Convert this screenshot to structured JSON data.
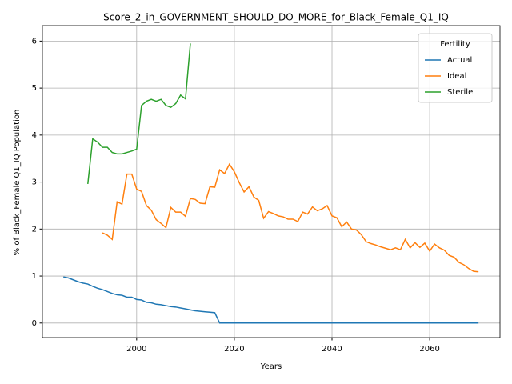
{
  "chart_data": {
    "type": "line",
    "title": "Score_2_in_GOVERNMENT_SHOULD_DO_MORE_for_Black_Female_Q1_IQ",
    "x_label": "Years",
    "y_label": "% of Black_Female Q1_IQ Population",
    "legend_title": "Fertility",
    "legend_loc": "upper right",
    "grid": true,
    "x": [
      1985,
      1986,
      1987,
      1988,
      1989,
      1990,
      1991,
      1992,
      1993,
      1994,
      1995,
      1996,
      1997,
      1998,
      1999,
      2000,
      2001,
      2002,
      2003,
      2004,
      2005,
      2006,
      2007,
      2008,
      2009,
      2010,
      2011,
      2012,
      2013,
      2014,
      2015,
      2016,
      2017,
      2018,
      2019,
      2020,
      2021,
      2022,
      2023,
      2024,
      2025,
      2026,
      2027,
      2028,
      2029,
      2030,
      2031,
      2032,
      2033,
      2034,
      2035,
      2036,
      2037,
      2038,
      2039,
      2040,
      2041,
      2042,
      2043,
      2044,
      2045,
      2046,
      2047,
      2048,
      2049,
      2050,
      2051,
      2052,
      2053,
      2054,
      2055,
      2056,
      2057,
      2058,
      2059,
      2060,
      2061,
      2062,
      2063,
      2064,
      2065,
      2066,
      2067,
      2068,
      2069,
      2070
    ],
    "xlim": [
      1980.7,
      2074.4
    ],
    "xticks": [
      2000,
      2020,
      2040,
      2060
    ],
    "ylim": [
      -0.31,
      6.33
    ],
    "yticks": [
      0,
      1,
      2,
      3,
      4,
      5,
      6
    ],
    "series": [
      {
        "name": "Actual",
        "color": "#1f77b4",
        "values": [
          0.98,
          0.96,
          0.92,
          0.88,
          0.85,
          0.83,
          0.78,
          0.74,
          0.71,
          0.67,
          0.63,
          0.6,
          0.59,
          0.55,
          0.55,
          0.5,
          0.49,
          0.44,
          0.43,
          0.4,
          0.39,
          0.37,
          0.35,
          0.34,
          0.32,
          0.3,
          0.28,
          0.26,
          0.25,
          0.24,
          0.23,
          0.22,
          0,
          0,
          0,
          0,
          0,
          0,
          0,
          0,
          0,
          0,
          0,
          0,
          0,
          0,
          0,
          0,
          0,
          0,
          0,
          0,
          0,
          0,
          0,
          0,
          0,
          0,
          0,
          0,
          0,
          0,
          0,
          0,
          0,
          0,
          0,
          0,
          0,
          0,
          0,
          0,
          0,
          0,
          0,
          0,
          0,
          0,
          0,
          0,
          0,
          0,
          0,
          0,
          0,
          0
        ]
      },
      {
        "name": "Ideal",
        "color": "#ff7f0e",
        "values": [
          null,
          null,
          null,
          null,
          null,
          null,
          null,
          null,
          1.92,
          1.87,
          1.78,
          2.58,
          2.53,
          3.17,
          3.17,
          2.85,
          2.8,
          2.5,
          2.4,
          2.2,
          2.12,
          2.03,
          2.46,
          2.36,
          2.36,
          2.27,
          2.65,
          2.63,
          2.55,
          2.54,
          2.9,
          2.89,
          3.26,
          3.18,
          3.38,
          3.22,
          2.99,
          2.79,
          2.9,
          2.68,
          2.61,
          2.23,
          2.37,
          2.33,
          2.28,
          2.26,
          2.21,
          2.21,
          2.16,
          2.36,
          2.32,
          2.47,
          2.39,
          2.43,
          2.5,
          2.28,
          2.24,
          2.05,
          2.15,
          2.0,
          1.98,
          1.88,
          1.73,
          1.69,
          1.66,
          1.62,
          1.59,
          1.56,
          1.6,
          1.56,
          1.78,
          1.6,
          1.71,
          1.61,
          1.7,
          1.53,
          1.68,
          1.6,
          1.55,
          1.44,
          1.4,
          1.29,
          1.24,
          1.16,
          1.1,
          1.09
        ]
      },
      {
        "name": "Sterile",
        "color": "#2ca02c",
        "values": [
          null,
          null,
          null,
          null,
          null,
          2.96,
          3.92,
          3.85,
          3.74,
          3.74,
          3.63,
          3.6,
          3.6,
          3.63,
          3.66,
          3.7,
          4.63,
          4.72,
          4.76,
          4.72,
          4.76,
          4.63,
          4.59,
          4.67,
          4.85,
          4.77,
          5.95,
          null,
          null,
          null,
          null,
          null,
          null,
          null,
          null,
          null,
          null,
          null,
          null,
          null,
          null,
          null,
          null,
          null,
          null,
          null,
          null,
          null,
          null,
          null,
          null,
          null,
          null,
          null,
          null,
          null,
          null,
          null,
          null,
          null,
          null,
          null,
          null,
          null,
          null,
          null,
          null,
          null,
          null,
          null,
          null,
          null,
          null,
          null,
          null,
          null,
          null,
          null,
          null,
          null,
          null,
          null,
          null,
          null,
          null,
          null
        ]
      }
    ]
  }
}
